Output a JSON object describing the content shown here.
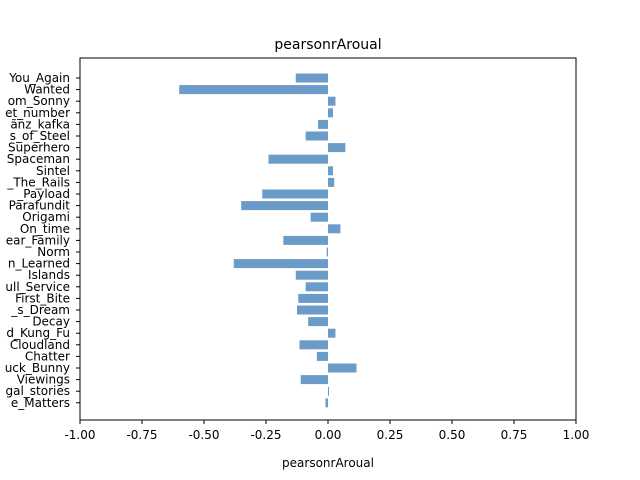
{
  "chart_data": {
    "type": "bar",
    "orientation": "horizontal",
    "title": "pearsonrAroual",
    "xlabel": "pearsonrAroual",
    "ylabel": "",
    "xlim": [
      -1.0,
      1.0
    ],
    "xticks": [
      "-1.00",
      "-0.75",
      "-0.50",
      "-0.25",
      "0.00",
      "0.25",
      "0.50",
      "0.75",
      "1.00"
    ],
    "grid": false,
    "legend": "none",
    "bar_color": "#6b9bc8",
    "categories": [
      "You_Again",
      "Wanted",
      "om_Sonny",
      "et_number",
      "ãnz_kafka",
      "s_of_Steel",
      "Superhero",
      "Spaceman",
      "Sintel",
      "_The_Rails",
      "_Payload",
      "Parafundit",
      "Origami",
      "On_time",
      "ear_Family",
      "Norm",
      "n_Learned",
      "Islands",
      "ull_Service",
      "First_Bite",
      "_s_Dream",
      "Decay",
      "d_Kung_Fu",
      "Cloudland",
      "Chatter",
      "uck_Bunny",
      "Viewings",
      "gal_stories",
      "e_Matters"
    ],
    "values": [
      -0.13,
      -0.6,
      0.03,
      0.02,
      -0.04,
      -0.09,
      0.07,
      -0.24,
      0.02,
      0.025,
      -0.265,
      -0.35,
      -0.07,
      0.05,
      -0.18,
      -0.005,
      -0.38,
      -0.13,
      -0.09,
      -0.12,
      -0.125,
      -0.08,
      0.03,
      -0.115,
      -0.045,
      0.115,
      -0.11,
      0.003,
      -0.01
    ]
  }
}
